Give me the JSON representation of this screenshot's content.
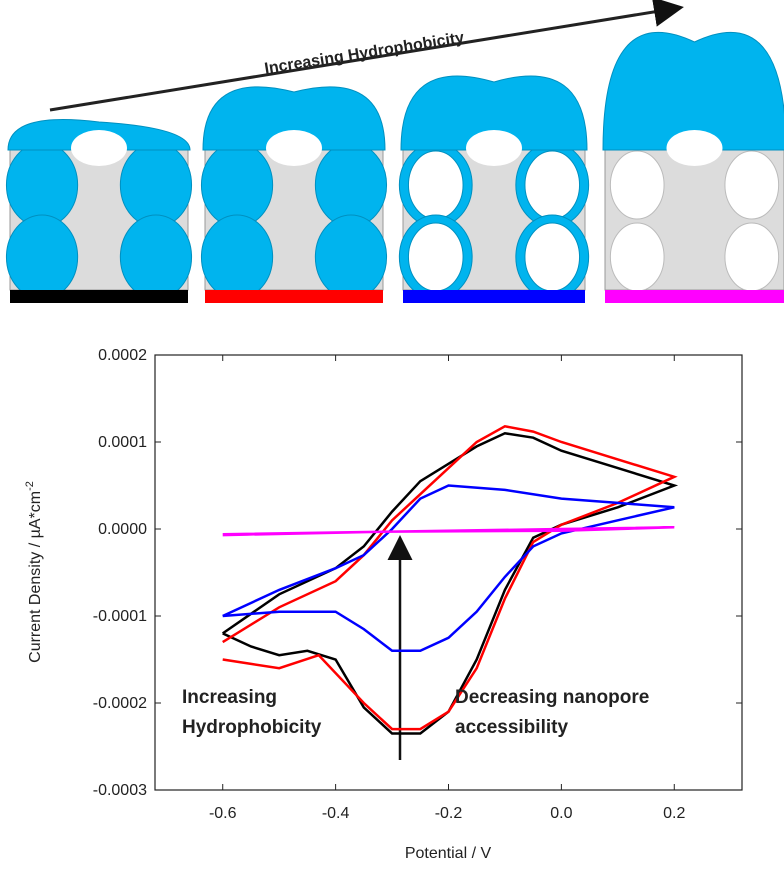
{
  "diagram": {
    "title": "Increasing Hydrophobicity"
  },
  "chart_data": {
    "type": "line",
    "xlabel": "Potential / V",
    "ylabel": "Current Density / µA*cm",
    "ylabel_superscript": "-2",
    "xlim": [
      -0.72,
      0.32
    ],
    "ylim": [
      -0.0003,
      0.0002
    ],
    "xticks": [
      -0.6,
      -0.4,
      -0.2,
      {
        "value": 0,
        "label": "0.0"
      },
      0.2
    ],
    "yticks": [
      -0.0003,
      -0.0002,
      -0.0001,
      {
        "value": 0,
        "label": "0.0000"
      },
      0.0001,
      0.0002
    ],
    "annotations": [
      {
        "lines": [
          "Increasing",
          "Hydrophobicity"
        ]
      },
      {
        "lines": [
          "Decreasing nanopore",
          "accessibility"
        ]
      }
    ],
    "series": [
      {
        "color": "#000000",
        "x": [
          -0.6,
          -0.5,
          -0.4,
          -0.35,
          -0.3,
          -0.25,
          -0.2,
          -0.15,
          -0.1,
          -0.05,
          0,
          0.1,
          0.2,
          0.1,
          0,
          -0.05,
          -0.1,
          -0.15,
          -0.2,
          -0.25,
          -0.3,
          -0.35,
          -0.4,
          -0.45,
          -0.5,
          -0.55,
          -0.6
        ],
        "values": [
          -0.00012,
          -7.5e-05,
          -4.5e-05,
          -2e-05,
          2e-05,
          5.5e-05,
          7.5e-05,
          9.5e-05,
          0.00011,
          0.000105,
          9e-05,
          7e-05,
          5e-05,
          2.5e-05,
          5e-06,
          -1e-05,
          -7e-05,
          -0.00015,
          -0.00021,
          -0.000235,
          -0.000235,
          -0.000205,
          -0.00015,
          -0.00014,
          -0.000145,
          -0.000135,
          -0.00012
        ]
      },
      {
        "color": "#ff0000",
        "x": [
          -0.6,
          -0.5,
          -0.4,
          -0.35,
          -0.3,
          -0.25,
          -0.2,
          -0.15,
          -0.1,
          -0.05,
          0,
          0.1,
          0.2,
          0.1,
          0,
          -0.05,
          -0.1,
          -0.15,
          -0.2,
          -0.25,
          -0.3,
          -0.35,
          -0.43,
          -0.5,
          -0.55,
          -0.6
        ],
        "values": [
          -0.00013,
          -9e-05,
          -6e-05,
          -3e-05,
          1e-05,
          4e-05,
          7e-05,
          0.0001,
          0.000118,
          0.000112,
          0.0001,
          8e-05,
          6e-05,
          3e-05,
          5e-06,
          -1.5e-05,
          -8e-05,
          -0.00016,
          -0.00021,
          -0.00023,
          -0.00023,
          -0.0002,
          -0.000145,
          -0.00016,
          -0.000155,
          -0.00015
        ]
      },
      {
        "color": "#0000ff",
        "x": [
          -0.6,
          -0.5,
          -0.4,
          -0.35,
          -0.3,
          -0.25,
          -0.2,
          -0.1,
          0,
          0.1,
          0.2,
          0.1,
          0,
          -0.05,
          -0.1,
          -0.15,
          -0.2,
          -0.25,
          -0.3,
          -0.35,
          -0.4,
          -0.5,
          -0.6
        ],
        "values": [
          -0.0001,
          -7e-05,
          -4.5e-05,
          -3e-05,
          0,
          3.5e-05,
          5e-05,
          4.5e-05,
          3.5e-05,
          3e-05,
          2.5e-05,
          1e-05,
          -5e-06,
          -2e-05,
          -5.5e-05,
          -9.5e-05,
          -0.000125,
          -0.00014,
          -0.00014,
          -0.000115,
          -9.5e-05,
          -9.5e-05,
          -0.0001
        ]
      },
      {
        "color": "#ff00ff",
        "x": [
          -0.6,
          -0.3,
          0,
          0.2,
          0,
          -0.3,
          -0.6
        ],
        "values": [
          -6e-06,
          -3e-06,
          0,
          2e-06,
          -2e-06,
          -3e-06,
          -7e-06
        ]
      }
    ]
  }
}
